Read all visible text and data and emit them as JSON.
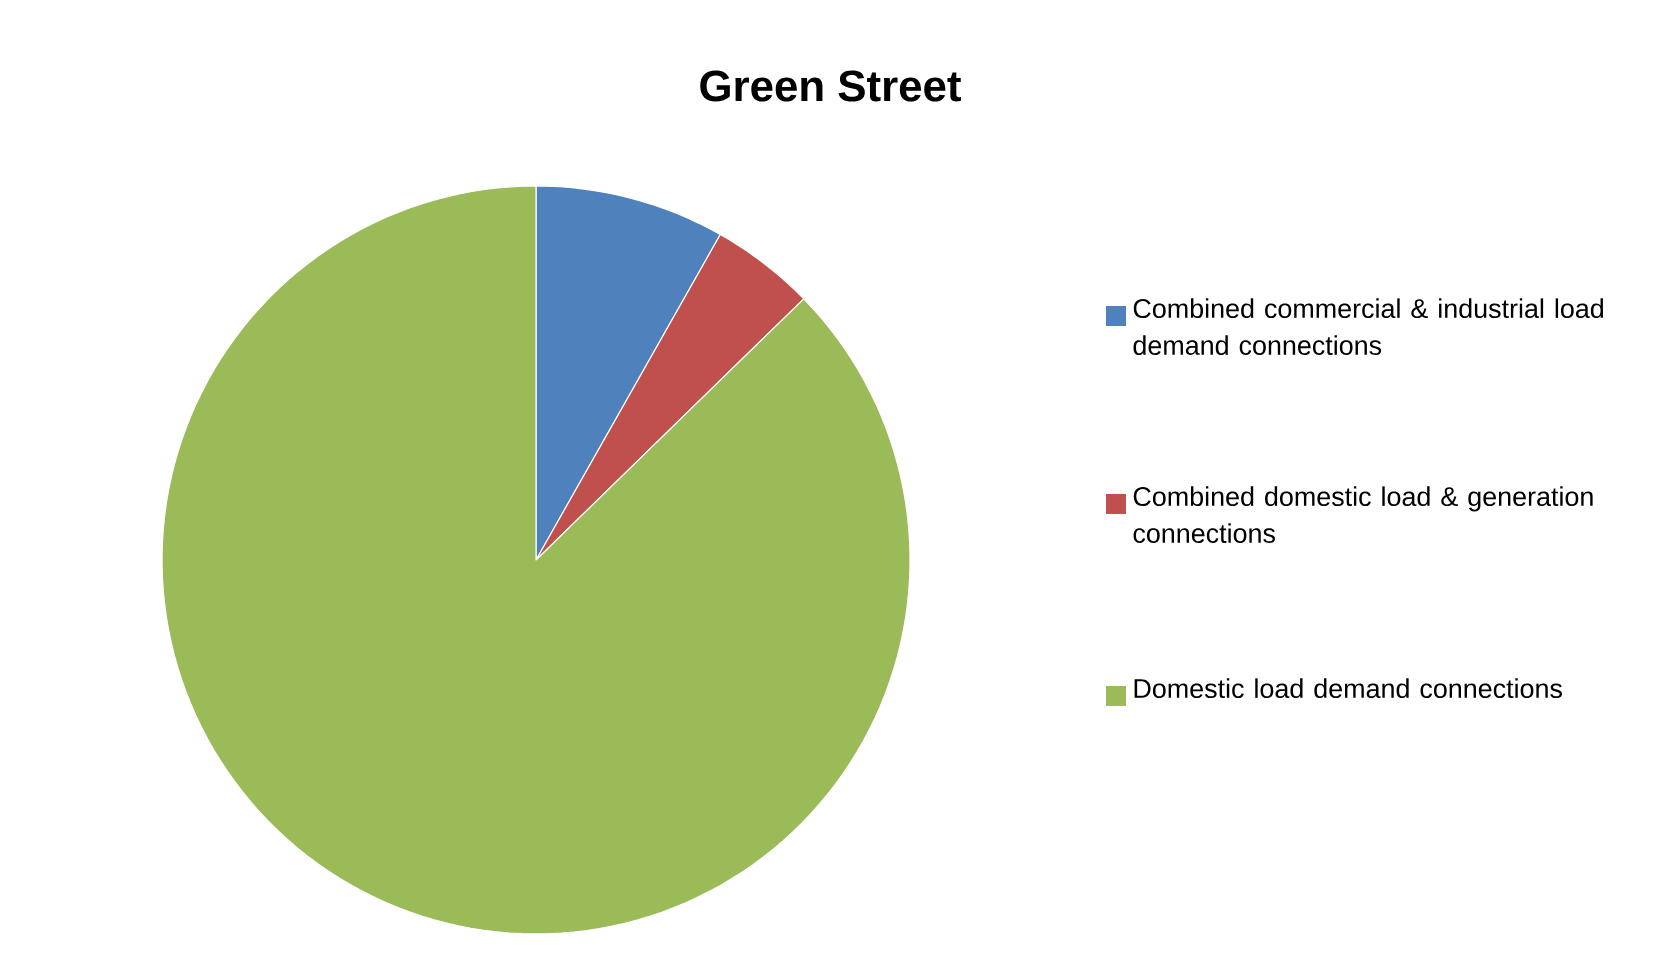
{
  "chart_data": {
    "type": "pie",
    "title": "Green Street",
    "categories": [
      "Combined commercial & industrial load demand connections",
      "Combined domestic load & generation connections",
      "Domestic load demand connections"
    ],
    "values": [
      8.2,
      4.5,
      87.3
    ],
    "colors": [
      "#4f81bd",
      "#c0504d",
      "#9bbb59"
    ],
    "legend": "right"
  }
}
